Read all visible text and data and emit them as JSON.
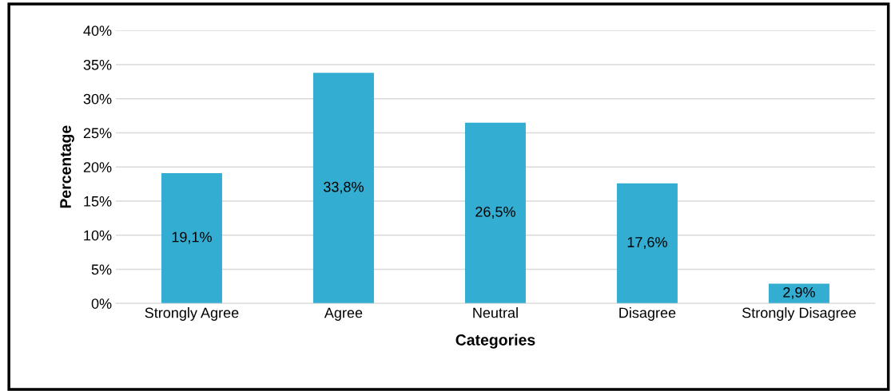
{
  "chart_data": {
    "type": "bar",
    "xlabel": "Categories",
    "ylabel": "Percentage",
    "categories": [
      "Strongly Agree",
      "Agree",
      "Neutral",
      "Disagree",
      "Strongly Disagree"
    ],
    "values": [
      19.1,
      33.8,
      26.5,
      17.6,
      2.9
    ],
    "value_labels": [
      "19,1%",
      "33,8%",
      "26,5%",
      "17,6%",
      "2,9%"
    ],
    "color": "#33aed2",
    "ylim": [
      0,
      40
    ],
    "yticks": [
      {
        "value": 0,
        "label": "0%"
      },
      {
        "value": 5,
        "label": "5%"
      },
      {
        "value": 10,
        "label": "10%"
      },
      {
        "value": 15,
        "label": "15%"
      },
      {
        "value": 20,
        "label": "20%"
      },
      {
        "value": 25,
        "label": "25%"
      },
      {
        "value": 30,
        "label": "30%"
      },
      {
        "value": 35,
        "label": "35%"
      },
      {
        "value": 40,
        "label": "40%"
      }
    ],
    "grid": "y",
    "legend": false
  }
}
